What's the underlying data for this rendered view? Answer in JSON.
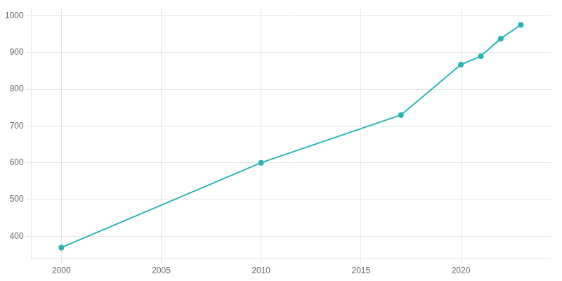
{
  "chart_data": {
    "type": "line",
    "x": [
      2000,
      2010,
      2017,
      2020,
      2021,
      2022,
      2023
    ],
    "values": [
      369,
      600,
      730,
      867,
      890,
      938,
      975
    ],
    "color": "#2ab5b5",
    "marker": "circle",
    "xlim": [
      1998.5,
      2024.5
    ],
    "xticks": [
      2000,
      2005,
      2010,
      2015,
      2020
    ],
    "ylim": [
      340,
      1020
    ],
    "yticks": [
      400,
      500,
      600,
      700,
      800,
      900,
      1000
    ],
    "grid": true
  }
}
